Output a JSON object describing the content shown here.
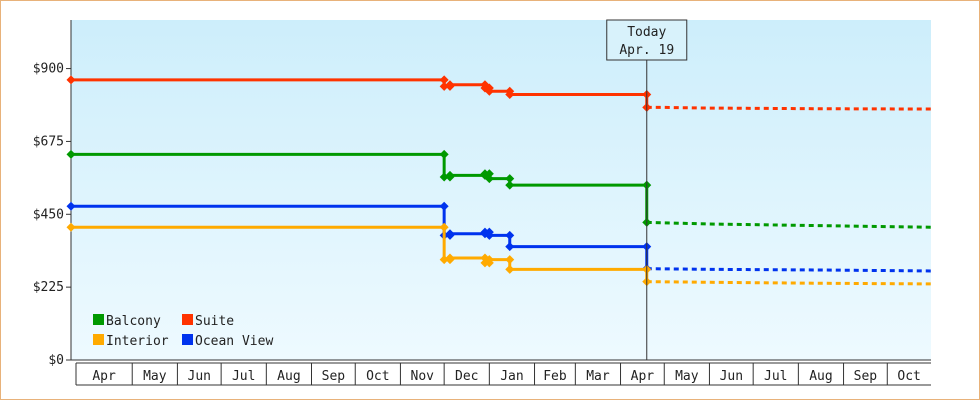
{
  "chart_data": {
    "type": "line",
    "step": true,
    "y_tick_labels": [
      "$0",
      "$225",
      "$450",
      "$675",
      "$900"
    ],
    "y_ticks": [
      0,
      225,
      450,
      675,
      900
    ],
    "ylim": [
      0,
      1050
    ],
    "x_range": [
      "2018-03-20",
      "2019-10-31"
    ],
    "x_months": [
      {
        "label": "Apr",
        "start": "2018-04-01"
      },
      {
        "label": "May",
        "start": "2018-05-01"
      },
      {
        "label": "Jun",
        "start": "2018-06-01"
      },
      {
        "label": "Jul",
        "start": "2018-07-01"
      },
      {
        "label": "Aug",
        "start": "2018-08-01"
      },
      {
        "label": "Sep",
        "start": "2018-09-01"
      },
      {
        "label": "Oct",
        "start": "2018-10-01"
      },
      {
        "label": "Nov",
        "start": "2018-11-01"
      },
      {
        "label": "Dec",
        "start": "2018-12-01"
      },
      {
        "label": "Jan",
        "start": "2019-01-01"
      },
      {
        "label": "Feb",
        "start": "2019-02-01"
      },
      {
        "label": "Mar",
        "start": "2019-03-01"
      },
      {
        "label": "Apr",
        "start": "2019-04-01"
      },
      {
        "label": "May",
        "start": "2019-05-01"
      },
      {
        "label": "Jun",
        "start": "2019-06-01"
      },
      {
        "label": "Jul",
        "start": "2019-07-01"
      },
      {
        "label": "Aug",
        "start": "2019-08-01"
      },
      {
        "label": "Sep",
        "start": "2019-09-01"
      },
      {
        "label": "Oct",
        "start": "2019-10-01"
      }
    ],
    "today": {
      "line1": "Today",
      "line2": "Apr. 19",
      "date": "2019-04-19"
    },
    "series": [
      {
        "name": "Suite",
        "color": "#ff3300",
        "history": [
          {
            "date": "2018-03-20",
            "value": 865
          },
          {
            "date": "2018-12-01",
            "value": 845
          },
          {
            "date": "2018-12-05",
            "value": 850
          },
          {
            "date": "2018-12-29",
            "value": 840
          },
          {
            "date": "2019-01-01",
            "value": 830
          },
          {
            "date": "2019-01-15",
            "value": 820
          },
          {
            "date": "2019-04-19",
            "value": 780
          }
        ],
        "forecast": [
          {
            "date": "2019-04-19",
            "value": 780
          },
          {
            "date": "2019-05-01",
            "value": 780
          },
          {
            "date": "2019-06-01",
            "value": 778
          },
          {
            "date": "2019-08-15",
            "value": 776
          },
          {
            "date": "2019-10-31",
            "value": 775
          }
        ]
      },
      {
        "name": "Balcony",
        "color": "#009900",
        "history": [
          {
            "date": "2018-03-20",
            "value": 635
          },
          {
            "date": "2018-12-01",
            "value": 565
          },
          {
            "date": "2018-12-05",
            "value": 570
          },
          {
            "date": "2018-12-29",
            "value": 575
          },
          {
            "date": "2019-01-01",
            "value": 560
          },
          {
            "date": "2019-01-15",
            "value": 540
          },
          {
            "date": "2019-04-19",
            "value": 425
          }
        ],
        "forecast": [
          {
            "date": "2019-04-19",
            "value": 425
          },
          {
            "date": "2019-06-01",
            "value": 420
          },
          {
            "date": "2019-08-15",
            "value": 415
          },
          {
            "date": "2019-10-31",
            "value": 410
          }
        ]
      },
      {
        "name": "Ocean View",
        "color": "#0033ee",
        "history": [
          {
            "date": "2018-03-20",
            "value": 475
          },
          {
            "date": "2018-12-01",
            "value": 385
          },
          {
            "date": "2018-12-05",
            "value": 390
          },
          {
            "date": "2018-12-29",
            "value": 395
          },
          {
            "date": "2019-01-01",
            "value": 385
          },
          {
            "date": "2019-01-15",
            "value": 350
          },
          {
            "date": "2019-04-19",
            "value": 282
          }
        ],
        "forecast": [
          {
            "date": "2019-04-19",
            "value": 282
          },
          {
            "date": "2019-06-01",
            "value": 280
          },
          {
            "date": "2019-08-15",
            "value": 278
          },
          {
            "date": "2019-10-31",
            "value": 275
          }
        ]
      },
      {
        "name": "Interior",
        "color": "#ffaa00",
        "history": [
          {
            "date": "2018-03-20",
            "value": 410
          },
          {
            "date": "2018-12-01",
            "value": 310
          },
          {
            "date": "2018-12-05",
            "value": 315
          },
          {
            "date": "2018-12-29",
            "value": 300
          },
          {
            "date": "2019-01-01",
            "value": 310
          },
          {
            "date": "2019-01-15",
            "value": 280
          },
          {
            "date": "2019-04-19",
            "value": 242
          }
        ],
        "forecast": [
          {
            "date": "2019-04-19",
            "value": 242
          },
          {
            "date": "2019-06-01",
            "value": 240
          },
          {
            "date": "2019-08-15",
            "value": 237
          },
          {
            "date": "2019-10-31",
            "value": 235
          }
        ]
      }
    ],
    "legend": [
      {
        "name": "Balcony",
        "color": "#009900"
      },
      {
        "name": "Suite",
        "color": "#ff3300"
      },
      {
        "name": "Interior",
        "color": "#ffaa00"
      },
      {
        "name": "Ocean View",
        "color": "#0033ee"
      }
    ],
    "legend_position": "bottom-left",
    "grid": false,
    "background": {
      "top": "#cdeefb",
      "bottom": "#eefaff"
    },
    "frame_color": "#e8b27a"
  }
}
